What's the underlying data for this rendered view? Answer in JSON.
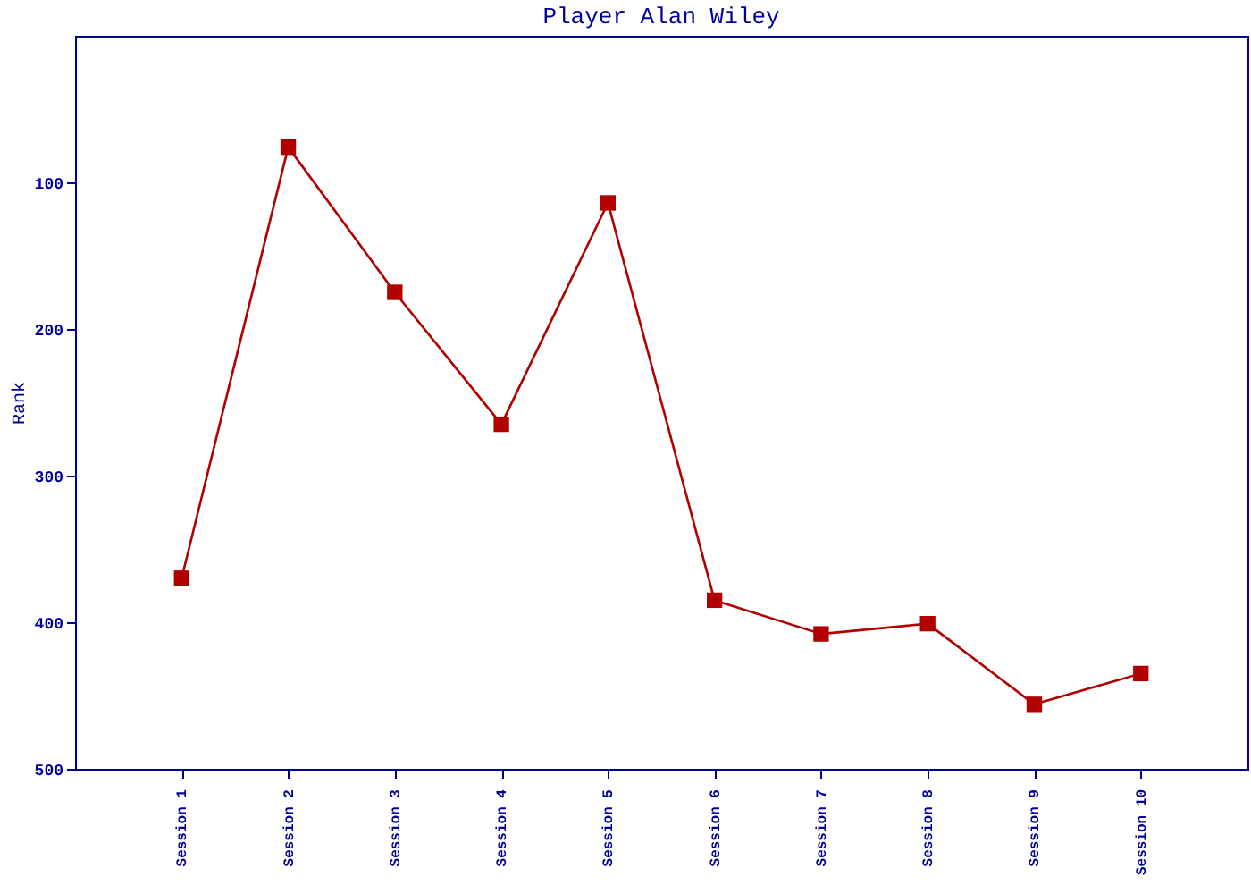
{
  "chart_data": {
    "type": "line",
    "title": "Player Alan Wiley",
    "ylabel": "Rank",
    "categories": [
      "Session 1",
      "Session 2",
      "Session 3",
      "Session 4",
      "Session 5",
      "Session 6",
      "Session 7",
      "Session 8",
      "Session 9",
      "Session 10"
    ],
    "series": [
      {
        "color": "#b00000",
        "values": [
          370,
          76,
          175,
          265,
          114,
          385,
          408,
          401,
          456,
          435
        ]
      }
    ],
    "ylim": [
      500,
      0
    ],
    "yticks": [
      100,
      200,
      300,
      400,
      500
    ],
    "grid": false,
    "legend": false,
    "marker": "square",
    "line_style": "solid"
  }
}
